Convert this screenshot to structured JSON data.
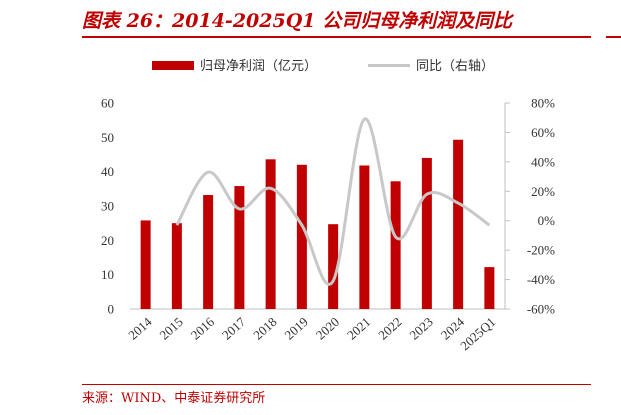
{
  "header": {
    "figure_title": "图表 26：2014-2025Q1 公司归母净利润及同比"
  },
  "footer": {
    "source": "来源：WIND、中泰证券研究所"
  },
  "chart_data": {
    "type": "bar",
    "categories": [
      "2014",
      "2015",
      "2016",
      "2017",
      "2018",
      "2019",
      "2020",
      "2021",
      "2022",
      "2023",
      "2024",
      "2025Q1"
    ],
    "series": [
      {
        "name": "归母净利润（亿元）",
        "type": "bar",
        "axis": "left",
        "color": "#c00000",
        "values": [
          25.8,
          25.0,
          33.2,
          35.8,
          43.6,
          42.0,
          24.7,
          41.8,
          37.2,
          44.0,
          49.3,
          12.2
        ]
      },
      {
        "name": "同比（右轴）",
        "type": "line",
        "axis": "right",
        "color": "#c8c8c8",
        "values": [
          null,
          -0.03,
          0.33,
          0.08,
          0.22,
          -0.03,
          -0.41,
          0.69,
          -0.11,
          0.18,
          0.12,
          -0.03
        ]
      }
    ],
    "y_left": {
      "min": 0,
      "max": 60,
      "ticks": [
        0,
        10,
        20,
        30,
        40,
        50,
        60
      ],
      "tick_labels": [
        "0",
        "10",
        "20",
        "30",
        "40",
        "50",
        "60"
      ]
    },
    "y_right": {
      "min": -0.6,
      "max": 0.8,
      "ticks": [
        -0.6,
        -0.4,
        -0.2,
        0,
        0.2,
        0.4,
        0.6,
        0.8
      ],
      "tick_labels": [
        "-60%",
        "-40%",
        "-20%",
        "0%",
        "20%",
        "40%",
        "60%",
        "80%"
      ]
    },
    "legend_position": "top",
    "grid": false
  }
}
